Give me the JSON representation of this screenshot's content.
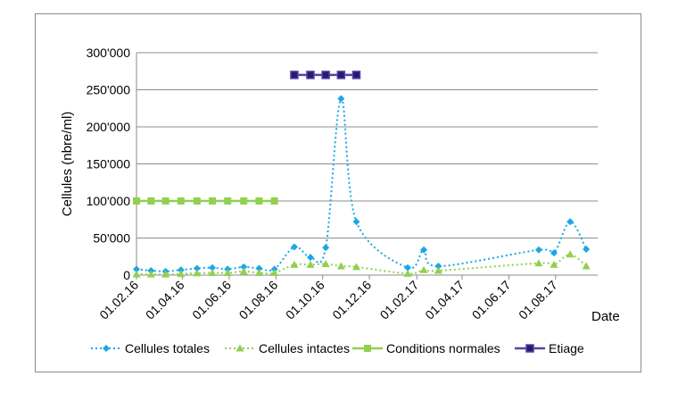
{
  "chart_data": {
    "type": "line",
    "xlabel": "Date",
    "ylabel": "Cellules (nbre/ml)",
    "ylim": [
      0,
      300000
    ],
    "yticks": [
      0,
      50000,
      100000,
      150000,
      200000,
      250000,
      300000
    ],
    "ytick_labels": [
      "0",
      "50'000",
      "100'000",
      "150'000",
      "200'000",
      "250'000",
      "300'000"
    ],
    "xlim": [
      "2016-02-01",
      "2017-09-25"
    ],
    "xticks": [
      "2016-02-01",
      "2016-04-01",
      "2016-06-01",
      "2016-08-01",
      "2016-10-01",
      "2016-12-01",
      "2017-02-01",
      "2017-04-01",
      "2017-06-01",
      "2017-08-01"
    ],
    "xtick_labels": [
      "01.02.16",
      "01.04.16",
      "01.06.16",
      "01.08.16",
      "01.10.16",
      "01.12.16",
      "01.02.17",
      "01.04.17",
      "01.06.17",
      "01.08.17"
    ],
    "grid": "horizontal",
    "legend_position": "bottom",
    "series": [
      {
        "name": "Cellules totales",
        "color": "#1aa7e6",
        "marker": "diamond",
        "line": "dotted",
        "points": [
          [
            "2016-02-01",
            8000
          ],
          [
            "2016-02-20",
            6000
          ],
          [
            "2016-03-10",
            5000
          ],
          [
            "2016-03-30",
            7000
          ],
          [
            "2016-04-20",
            9000
          ],
          [
            "2016-05-10",
            10000
          ],
          [
            "2016-05-30",
            8000
          ],
          [
            "2016-06-20",
            11000
          ],
          [
            "2016-07-10",
            9000
          ],
          [
            "2016-07-30",
            8000
          ],
          [
            "2016-08-25",
            38000
          ],
          [
            "2016-09-15",
            24000
          ],
          [
            "2016-10-05",
            37000
          ],
          [
            "2016-10-25",
            238000
          ],
          [
            "2016-11-14",
            72000
          ],
          [
            "2017-01-20",
            10000
          ],
          [
            "2017-02-10",
            34000
          ],
          [
            "2017-03-01",
            12000
          ],
          [
            "2017-07-10",
            34000
          ],
          [
            "2017-07-30",
            30000
          ],
          [
            "2017-08-20",
            72000
          ],
          [
            "2017-09-10",
            35000
          ]
        ]
      },
      {
        "name": "Cellules intactes",
        "color": "#92d050",
        "marker": "triangle",
        "line": "dotted",
        "points": [
          [
            "2016-02-01",
            1000
          ],
          [
            "2016-02-20",
            1000
          ],
          [
            "2016-03-10",
            1000
          ],
          [
            "2016-03-30",
            1500
          ],
          [
            "2016-04-20",
            2500
          ],
          [
            "2016-05-10",
            3000
          ],
          [
            "2016-05-30",
            3000
          ],
          [
            "2016-06-20",
            5000
          ],
          [
            "2016-07-10",
            3000
          ],
          [
            "2016-07-30",
            3000
          ],
          [
            "2016-08-25",
            14000
          ],
          [
            "2016-09-15",
            14000
          ],
          [
            "2016-10-05",
            15000
          ],
          [
            "2016-10-25",
            12000
          ],
          [
            "2016-11-14",
            11000
          ],
          [
            "2017-01-20",
            2000
          ],
          [
            "2017-02-10",
            7000
          ],
          [
            "2017-03-01",
            6000
          ],
          [
            "2017-07-10",
            16000
          ],
          [
            "2017-07-30",
            14000
          ],
          [
            "2017-08-20",
            28000
          ],
          [
            "2017-09-10",
            12000
          ]
        ]
      },
      {
        "name": "Conditions normales",
        "color": "#92d050",
        "marker": "square",
        "line": "solid",
        "points": [
          [
            "2016-02-01",
            100000
          ],
          [
            "2016-02-20",
            100000
          ],
          [
            "2016-03-10",
            100000
          ],
          [
            "2016-03-30",
            100000
          ],
          [
            "2016-04-20",
            100000
          ],
          [
            "2016-05-10",
            100000
          ],
          [
            "2016-05-30",
            100000
          ],
          [
            "2016-06-20",
            100000
          ],
          [
            "2016-07-10",
            100000
          ],
          [
            "2016-07-30",
            100000
          ]
        ]
      },
      {
        "name": "Etiage",
        "color": "#5b3fa6",
        "marker_fill": "#1f1f6e",
        "marker": "square",
        "line": "solid",
        "points": [
          [
            "2016-08-25",
            270000
          ],
          [
            "2016-09-15",
            270000
          ],
          [
            "2016-10-05",
            270000
          ],
          [
            "2016-10-25",
            270000
          ],
          [
            "2016-11-14",
            270000
          ]
        ]
      }
    ]
  }
}
